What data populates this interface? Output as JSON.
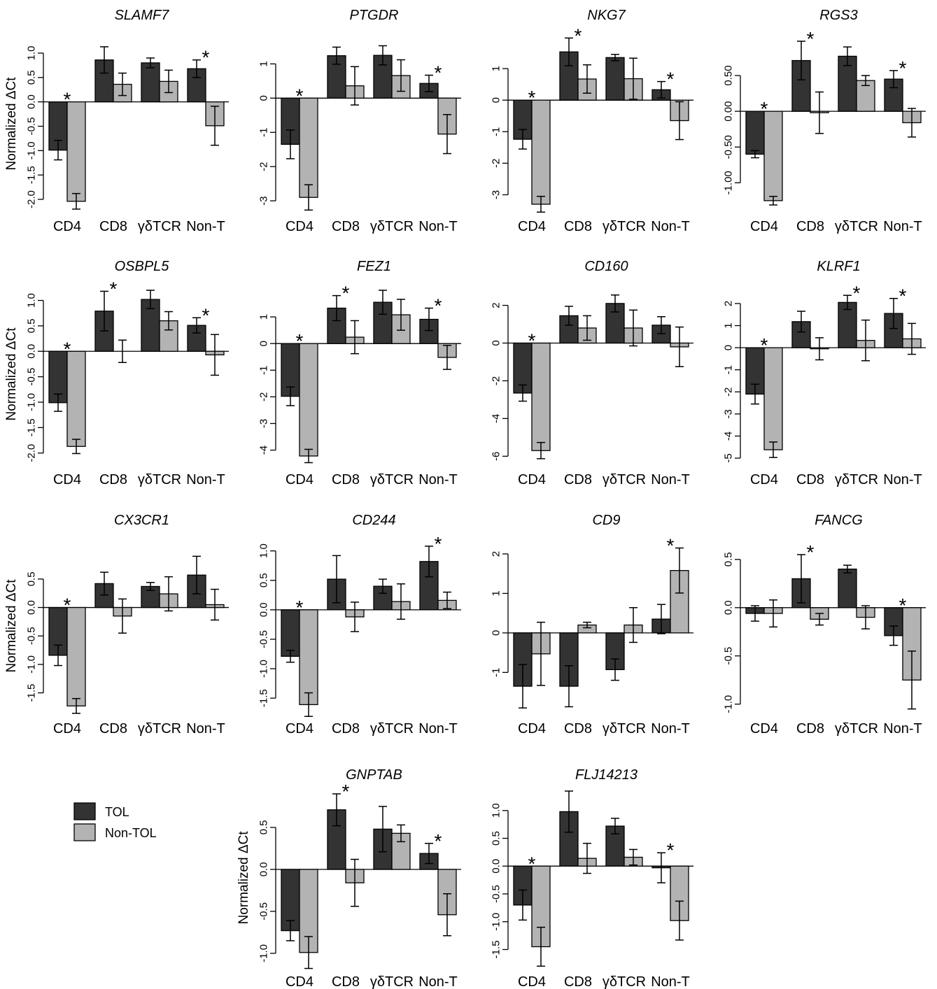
{
  "colors": {
    "TOL": "#333333",
    "Non-TOL": "#b3b3b3"
  },
  "legend": [
    {
      "name": "TOL",
      "color": "#333333"
    },
    {
      "name": "Non-TOL",
      "color": "#b3b3b3"
    }
  ],
  "chart_data": [
    {
      "type": "bar",
      "title": "SLAMF7",
      "ylabel": "Normalized ΔCt",
      "categories": [
        "CD4",
        "CD8",
        "γδTCR",
        "Non-T"
      ],
      "ylim": [
        -2.1,
        1.2
      ],
      "yticks": [
        -2.0,
        -1.5,
        -1.0,
        -0.5,
        0.0,
        0.5,
        1.0
      ],
      "yticklabels": [
        "-2.0",
        "-1.5",
        "-1.0",
        "-0.5",
        "0.0",
        "0.5",
        "1.0"
      ],
      "series": [
        {
          "name": "TOL",
          "values": [
            -0.99,
            0.86,
            0.8,
            0.68
          ],
          "err": [
            0.2,
            0.27,
            0.1,
            0.18
          ]
        },
        {
          "name": "Non-TOL",
          "values": [
            -2.04,
            0.36,
            0.42,
            -0.49
          ],
          "err": [
            0.16,
            0.23,
            0.23,
            0.4
          ]
        }
      ],
      "significant": [
        "*",
        "",
        "",
        "*"
      ]
    },
    {
      "type": "bar",
      "title": "PTGDR",
      "ylabel": "",
      "categories": [
        "CD4",
        "CD8",
        "γδTCR",
        "Non-T"
      ],
      "ylim": [
        -3.1,
        1.6
      ],
      "yticks": [
        -3,
        -2,
        -1,
        0,
        1
      ],
      "yticklabels": [
        "-3",
        "-2",
        "-1",
        "0",
        "1"
      ],
      "series": [
        {
          "name": "TOL",
          "values": [
            -1.35,
            1.24,
            1.25,
            0.43
          ],
          "err": [
            0.42,
            0.25,
            0.28,
            0.24
          ]
        },
        {
          "name": "Non-TOL",
          "values": [
            -2.9,
            0.36,
            0.66,
            -1.05
          ],
          "err": [
            0.37,
            0.56,
            0.46,
            0.57
          ]
        }
      ],
      "significant": [
        "*",
        "",
        "",
        "*"
      ]
    },
    {
      "type": "bar",
      "title": "NKG7",
      "ylabel": "",
      "categories": [
        "CD4",
        "CD8",
        "γδTCR",
        "Non-T"
      ],
      "ylim": [
        -3.3,
        1.8
      ],
      "yticks": [
        -3,
        -2,
        -1,
        0,
        1
      ],
      "yticklabels": [
        "-3",
        "-2",
        "-1",
        "0",
        "1"
      ],
      "series": [
        {
          "name": "TOL",
          "values": [
            -1.24,
            1.53,
            1.35,
            0.33
          ],
          "err": [
            0.31,
            0.44,
            0.1,
            0.26
          ]
        },
        {
          "name": "Non-TOL",
          "values": [
            -3.3,
            0.67,
            0.68,
            -0.65
          ],
          "err": [
            0.25,
            0.45,
            0.65,
            0.6
          ]
        }
      ],
      "significant": [
        "*",
        "*",
        "",
        "*"
      ]
    },
    {
      "type": "bar",
      "title": "RGS3",
      "ylabel": "",
      "categories": [
        "CD4",
        "CD8",
        "γδTCR",
        "Non-T"
      ],
      "ylim": [
        -1.3,
        0.95
      ],
      "yticks": [
        -1.0,
        -0.5,
        0.0,
        0.5
      ],
      "yticklabels": [
        "-1.00",
        "-0.50",
        "0.00",
        "0.50"
      ],
      "series": [
        {
          "name": "TOL",
          "values": [
            -0.6,
            0.71,
            0.77,
            0.45
          ],
          "err": [
            0.05,
            0.27,
            0.13,
            0.12
          ]
        },
        {
          "name": "Non-TOL",
          "values": [
            -1.25,
            -0.02,
            0.43,
            -0.16
          ],
          "err": [
            0.06,
            0.29,
            0.07,
            0.2
          ]
        }
      ],
      "significant": [
        "*",
        "*",
        "",
        "*"
      ]
    },
    {
      "type": "bar",
      "title": "OSBPL5",
      "ylabel": "Normalized ΔCt",
      "categories": [
        "CD4",
        "CD8",
        "γδTCR",
        "Non-T"
      ],
      "ylim": [
        -2.1,
        1.2
      ],
      "yticks": [
        -2.0,
        -1.5,
        -1.0,
        -0.5,
        0.0,
        0.5,
        1.0
      ],
      "yticklabels": [
        "-2.0",
        "-1.5",
        "-1.0",
        "-0.5",
        "0.0",
        "0.5",
        "1.0"
      ],
      "series": [
        {
          "name": "TOL",
          "values": [
            -1.01,
            0.79,
            1.02,
            0.51
          ],
          "err": [
            0.17,
            0.39,
            0.18,
            0.15
          ]
        },
        {
          "name": "Non-TOL",
          "values": [
            -1.87,
            0.0,
            0.6,
            -0.07
          ],
          "err": [
            0.14,
            0.22,
            0.18,
            0.4
          ]
        }
      ],
      "significant": [
        "*",
        "*",
        "",
        "*"
      ]
    },
    {
      "type": "bar",
      "title": "FEZ1",
      "ylabel": "",
      "categories": [
        "CD4",
        "CD8",
        "γδTCR",
        "Non-T"
      ],
      "ylim": [
        -4.3,
        2.0
      ],
      "yticks": [
        -4,
        -3,
        -2,
        -1,
        0,
        1
      ],
      "yticklabels": [
        "-4",
        "-3",
        "-2",
        "-1",
        "0",
        "1"
      ],
      "series": [
        {
          "name": "TOL",
          "values": [
            -1.98,
            1.33,
            1.55,
            0.91
          ],
          "err": [
            0.35,
            0.47,
            0.45,
            0.42
          ]
        },
        {
          "name": "Non-TOL",
          "values": [
            -4.22,
            0.24,
            1.08,
            -0.52
          ],
          "err": [
            0.25,
            0.62,
            0.58,
            0.45
          ]
        }
      ],
      "significant": [
        "*",
        "*",
        "",
        "*"
      ]
    },
    {
      "type": "bar",
      "title": "CD160",
      "ylabel": "",
      "categories": [
        "CD4",
        "CD8",
        "γδTCR",
        "Non-T"
      ],
      "ylim": [
        -6.1,
        2.8
      ],
      "yticks": [
        -6,
        -4,
        -2,
        0,
        2
      ],
      "yticklabels": [
        "-6",
        "-4",
        "-2",
        "0",
        "2"
      ],
      "series": [
        {
          "name": "TOL",
          "values": [
            -2.65,
            1.45,
            2.1,
            0.95
          ],
          "err": [
            0.43,
            0.5,
            0.45,
            0.45
          ]
        },
        {
          "name": "Non-TOL",
          "values": [
            -5.7,
            0.8,
            0.8,
            -0.2
          ],
          "err": [
            0.43,
            0.65,
            0.95,
            1.05
          ]
        }
      ],
      "significant": [
        "*",
        "",
        "",
        ""
      ]
    },
    {
      "type": "bar",
      "title": "KLRF1",
      "ylabel": "",
      "categories": [
        "CD4",
        "CD8",
        "γδTCR",
        "Non-T"
      ],
      "ylim": [
        -5.0,
        2.6
      ],
      "yticks": [
        -5,
        -4,
        -3,
        -2,
        -1,
        0,
        1,
        2
      ],
      "yticklabels": [
        "-5",
        "-4",
        "-3",
        "-2",
        "-1",
        "0",
        "1",
        "2"
      ],
      "series": [
        {
          "name": "TOL",
          "values": [
            -2.1,
            1.18,
            2.05,
            1.55
          ],
          "err": [
            0.45,
            0.47,
            0.32,
            0.68
          ]
        },
        {
          "name": "Non-TOL",
          "values": [
            -4.62,
            -0.05,
            0.33,
            0.4
          ],
          "err": [
            0.35,
            0.5,
            0.92,
            0.7
          ]
        }
      ],
      "significant": [
        "*",
        "",
        "*",
        "*"
      ]
    },
    {
      "type": "bar",
      "title": "CX3CR1",
      "ylabel": "Normalized ΔCt",
      "categories": [
        "CD4",
        "CD8",
        "γδTCR",
        "Non-T"
      ],
      "ylim": [
        -1.8,
        1.15
      ],
      "yticks": [
        -1.5,
        -1.0,
        -0.5,
        0.0,
        0.5
      ],
      "yticklabels": [
        "-1.5",
        "-1.0",
        "-0.5",
        "0.0",
        "0.5"
      ],
      "series": [
        {
          "name": "TOL",
          "values": [
            -0.84,
            0.42,
            0.37,
            0.57
          ],
          "err": [
            0.18,
            0.2,
            0.07,
            0.33
          ]
        },
        {
          "name": "Non-TOL",
          "values": [
            -1.73,
            -0.15,
            0.24,
            0.05
          ],
          "err": [
            0.13,
            0.3,
            0.3,
            0.27
          ]
        }
      ],
      "significant": [
        "*",
        "",
        "",
        ""
      ]
    },
    {
      "type": "bar",
      "title": "CD244",
      "ylabel": "",
      "categories": [
        "CD4",
        "CD8",
        "γδTCR",
        "Non-T"
      ],
      "ylim": [
        -1.7,
        1.15
      ],
      "yticks": [
        -1.5,
        -1.0,
        -0.5,
        0.0,
        0.5,
        1.0
      ],
      "yticklabels": [
        "-1.5",
        "-1.0",
        "-0.5",
        "0.0",
        "0.5",
        "1.0"
      ],
      "series": [
        {
          "name": "TOL",
          "values": [
            -0.79,
            0.52,
            0.4,
            0.82
          ],
          "err": [
            0.1,
            0.4,
            0.12,
            0.26
          ]
        },
        {
          "name": "Non-TOL",
          "values": [
            -1.61,
            -0.12,
            0.14,
            0.16
          ],
          "err": [
            0.2,
            0.25,
            0.3,
            0.14
          ]
        }
      ],
      "significant": [
        "*",
        "",
        "",
        "*"
      ]
    },
    {
      "type": "bar",
      "title": "CD9",
      "ylabel": "",
      "categories": [
        "CD4",
        "CD8",
        "γδTCR",
        "Non-T"
      ],
      "ylim": [
        -1.95,
        2.3
      ],
      "yticks": [
        -1,
        0,
        1,
        2
      ],
      "yticklabels": [
        "-1",
        "0",
        "1",
        "2"
      ],
      "series": [
        {
          "name": "TOL",
          "values": [
            -1.35,
            -1.35,
            -0.93,
            0.35
          ],
          "err": [
            0.55,
            0.52,
            0.27,
            0.37
          ]
        },
        {
          "name": "Non-TOL",
          "values": [
            -0.53,
            0.2,
            0.2,
            1.58
          ],
          "err": [
            0.8,
            0.07,
            0.44,
            0.57
          ]
        }
      ],
      "significant": [
        "",
        "",
        "",
        "*"
      ]
    },
    {
      "type": "bar",
      "title": "FANCG",
      "ylabel": "",
      "categories": [
        "CD4",
        "CD8",
        "γδTCR",
        "Non-T"
      ],
      "ylim": [
        -1.06,
        0.68
      ],
      "yticks": [
        -1.0,
        -0.5,
        0.0,
        0.5
      ],
      "yticklabels": [
        "-1.0",
        "-0.5",
        "0.0",
        "0.5"
      ],
      "series": [
        {
          "name": "TOL",
          "values": [
            -0.06,
            0.3,
            0.4,
            -0.29
          ],
          "err": [
            0.08,
            0.25,
            0.04,
            0.1
          ]
        },
        {
          "name": "Non-TOL",
          "values": [
            -0.06,
            -0.12,
            -0.1,
            -0.75
          ],
          "err": [
            0.14,
            0.06,
            0.12,
            0.3
          ]
        }
      ],
      "significant": [
        "",
        "*",
        "",
        "*"
      ]
    },
    {
      "type": "bar",
      "title": "GNPTAB",
      "ylabel": "Normalized ΔCt",
      "categories": [
        "CD4",
        "CD8",
        "γδTCR",
        "Non-T"
      ],
      "ylim": [
        -1.1,
        0.9
      ],
      "yticks": [
        -1.0,
        -0.5,
        0.0,
        0.5
      ],
      "yticklabels": [
        "-1.0",
        "-0.5",
        "0.0",
        "0.5"
      ],
      "series": [
        {
          "name": "TOL",
          "values": [
            -0.73,
            0.71,
            0.48,
            0.19
          ],
          "err": [
            0.12,
            0.19,
            0.27,
            0.12
          ]
        },
        {
          "name": "Non-TOL",
          "values": [
            -0.99,
            -0.16,
            0.43,
            -0.54
          ],
          "err": [
            0.19,
            0.28,
            0.1,
            0.25
          ]
        }
      ],
      "significant": [
        "",
        "*",
        "",
        "*"
      ]
    },
    {
      "type": "bar",
      "title": "FLJ14213",
      "ylabel": "",
      "categories": [
        "CD4",
        "CD8",
        "γδTCR",
        "Non-T"
      ],
      "ylim": [
        -1.72,
        1.3
      ],
      "yticks": [
        -1.5,
        -1.0,
        -0.5,
        0.0,
        0.5,
        1.0
      ],
      "yticklabels": [
        "-1.5",
        "-1.0",
        "-0.5",
        "0.0",
        "0.5",
        "1.0"
      ],
      "series": [
        {
          "name": "TOL",
          "values": [
            -0.7,
            0.98,
            0.72,
            -0.03
          ],
          "err": [
            0.27,
            0.37,
            0.14,
            0.27
          ]
        },
        {
          "name": "Non-TOL",
          "values": [
            -1.45,
            0.14,
            0.16,
            -0.98
          ],
          "err": [
            0.35,
            0.27,
            0.14,
            0.35
          ]
        }
      ],
      "significant": [
        "*",
        "",
        "",
        "*"
      ]
    }
  ]
}
